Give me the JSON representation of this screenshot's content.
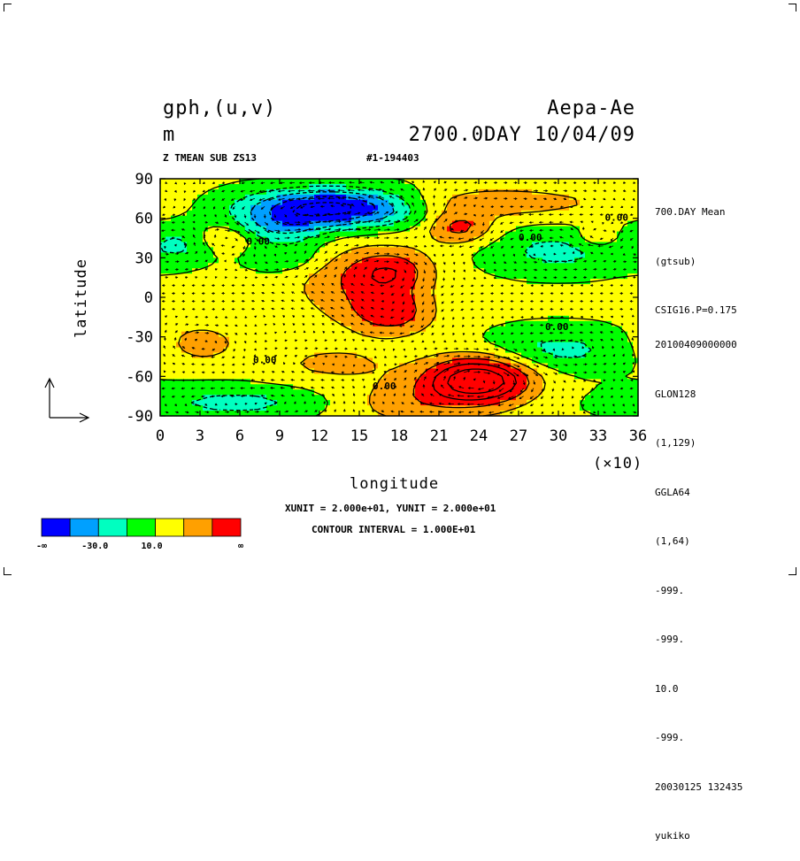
{
  "header": {
    "left_line1": "gph,(u,v)",
    "left_line2": "m",
    "right_line1": "Aepa-Ae",
    "right_line2": "2700.0DAY 10/04/09",
    "sub_left": "Z TMEAN SUB ZS13",
    "sub_right": "#1-194403"
  },
  "side_info": {
    "top": [
      "700.DAY Mean",
      "(gtsub)",
      "CSIG16.P=0.175"
    ],
    "bottom": [
      "20100409000000",
      "GLON128",
      "(1,129)",
      "GGLA64",
      "(1,64)",
      "-999.",
      "-999.",
      "10.0",
      "-999.",
      "20030125 132435",
      "yukiko"
    ]
  },
  "footer": {
    "vector_units": "XUNIT = 2.000e+01, YUNIT = 2.000e+01",
    "contour_interval": "CONTOUR INTERVAL = 1.000E+01"
  },
  "colorbar": {
    "colors": [
      "#0000ff",
      "#00a0ff",
      "#00ffc0",
      "#00ff00",
      "#ffff00",
      "#ffa000",
      "#ff0000"
    ],
    "labels": [
      "-∞",
      "-30.0",
      "10.0",
      "∞"
    ]
  },
  "chart_data": {
    "type": "heatmap",
    "title": "gph,(u,v)",
    "xlabel": "longitude",
    "ylabel": "latitude",
    "x_ticks": [
      "0",
      "3",
      "6",
      "9",
      "12",
      "15",
      "18",
      "21",
      "24",
      "27",
      "30",
      "33",
      "36"
    ],
    "x_multiplier": "(×10)",
    "y_ticks": [
      "90",
      "60",
      "30",
      "0",
      "-30",
      "-60",
      "-90"
    ],
    "xlim": [
      0,
      360
    ],
    "ylim": [
      -90,
      90
    ],
    "contour_label": "0.00",
    "color_levels": [
      -30,
      -20,
      -10,
      0,
      10,
      20
    ],
    "anomalies": [
      {
        "lon": 130,
        "lat": 68,
        "value": -48,
        "sigma_lon": 45,
        "sigma_lat": 10
      },
      {
        "lon": 90,
        "lat": 52,
        "value": -18,
        "sigma_lon": 25,
        "sigma_lat": 9
      },
      {
        "lon": 175,
        "lat": 20,
        "value": 22,
        "sigma_lon": 22,
        "sigma_lat": 12
      },
      {
        "lon": 175,
        "lat": -12,
        "value": 22,
        "sigma_lon": 22,
        "sigma_lat": 12
      },
      {
        "lon": 240,
        "lat": -62,
        "value": 48,
        "sigma_lon": 28,
        "sigma_lat": 12
      },
      {
        "lon": 225,
        "lat": 53,
        "value": 22,
        "sigma_lon": 18,
        "sigma_lat": 9
      },
      {
        "lon": 300,
        "lat": 35,
        "value": -15,
        "sigma_lon": 38,
        "sigma_lat": 12
      },
      {
        "lon": 300,
        "lat": -40,
        "value": -15,
        "sigma_lon": 38,
        "sigma_lat": 12
      },
      {
        "lon": 60,
        "lat": -80,
        "value": -15,
        "sigma_lon": 55,
        "sigma_lat": 9
      },
      {
        "lon": 15,
        "lat": 40,
        "value": -12,
        "sigma_lon": 18,
        "sigma_lat": 10
      },
      {
        "lon": 95,
        "lat": 30,
        "value": -12,
        "sigma_lon": 20,
        "sigma_lat": 8
      },
      {
        "lon": 30,
        "lat": -35,
        "value": 14,
        "sigma_lon": 20,
        "sigma_lat": 10
      },
      {
        "lon": 50,
        "lat": 45,
        "value": 12,
        "sigma_lon": 15,
        "sigma_lat": 7
      },
      {
        "lon": 330,
        "lat": 45,
        "value": 12,
        "sigma_lon": 12,
        "sigma_lat": 6
      },
      {
        "lon": 140,
        "lat": 10,
        "value": 14,
        "sigma_lon": 30,
        "sigma_lat": 20
      },
      {
        "lon": 130,
        "lat": -50,
        "value": 10,
        "sigma_lon": 35,
        "sigma_lat": 10
      },
      {
        "lon": 190,
        "lat": -80,
        "value": 14,
        "sigma_lon": 45,
        "sigma_lat": 12
      },
      {
        "lon": 250,
        "lat": 72,
        "value": 15,
        "sigma_lon": 60,
        "sigma_lat": 8
      }
    ]
  }
}
